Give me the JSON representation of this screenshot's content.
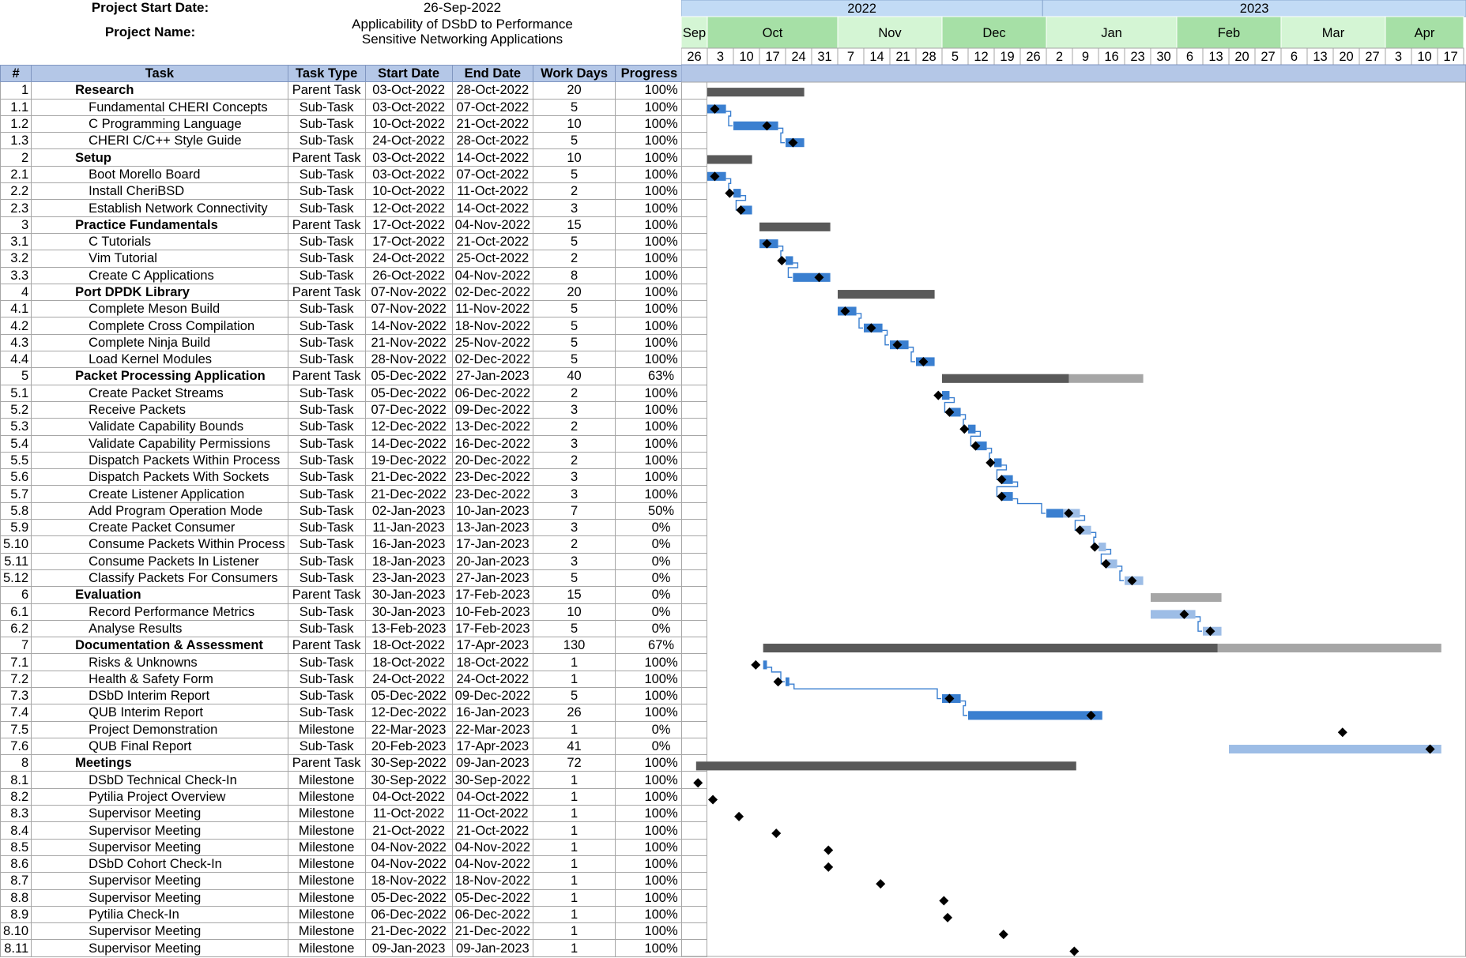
{
  "header": {
    "start_label": "Project Start Date:",
    "start_value": "26-Sep-2022",
    "name_label": "Project Name:",
    "name_value_line1": "Applicability of DSbD to Performance",
    "name_value_line2": "Sensitive Networking Applications"
  },
  "columns": [
    "#",
    "Task",
    "Task Type",
    "Start Date",
    "End Date",
    "Work Days",
    "Progress (%)"
  ],
  "colors": {
    "parent_done": "#595959",
    "parent_remaining": "#a6a6a6",
    "sub_done": "#3a7fd0",
    "sub_remaining": "#9dbde6",
    "year_fill": "#c2dbf5",
    "month_fill_a": "#a6e0a6",
    "month_fill_b": "#d4f5d4",
    "table_header": "#b4c7e7"
  },
  "chart_data": {
    "type": "gantt",
    "timeline": {
      "years": [
        {
          "label": "2022"
        },
        {
          "label": "2023"
        }
      ],
      "months": [
        "Sep",
        "Oct",
        "Nov",
        "Dec",
        "Jan",
        "Feb",
        "Mar",
        "Apr"
      ],
      "weeks": [
        "26",
        "3",
        "10",
        "17",
        "24",
        "31",
        "7",
        "14",
        "21",
        "28",
        "5",
        "12",
        "19",
        "26",
        "2",
        "9",
        "16",
        "23",
        "30",
        "6",
        "13",
        "20",
        "27",
        "6",
        "13",
        "20",
        "27",
        "3",
        "10",
        "17"
      ]
    },
    "tasks": [
      {
        "id": "1",
        "name": "Research",
        "type": "Parent Task",
        "start": "03-Oct-2022",
        "end": "28-Oct-2022",
        "days": "20",
        "progress": "100%"
      },
      {
        "id": "1.1",
        "name": "Fundamental CHERI Concepts",
        "type": "Sub-Task",
        "start": "03-Oct-2022",
        "end": "07-Oct-2022",
        "days": "5",
        "progress": "100%"
      },
      {
        "id": "1.2",
        "name": "C Programming Language",
        "type": "Sub-Task",
        "start": "10-Oct-2022",
        "end": "21-Oct-2022",
        "days": "10",
        "progress": "100%"
      },
      {
        "id": "1.3",
        "name": "CHERI C/C++ Style Guide",
        "type": "Sub-Task",
        "start": "24-Oct-2022",
        "end": "28-Oct-2022",
        "days": "5",
        "progress": "100%"
      },
      {
        "id": "2",
        "name": "Setup",
        "type": "Parent Task",
        "start": "03-Oct-2022",
        "end": "14-Oct-2022",
        "days": "10",
        "progress": "100%"
      },
      {
        "id": "2.1",
        "name": "Boot Morello Board",
        "type": "Sub-Task",
        "start": "03-Oct-2022",
        "end": "07-Oct-2022",
        "days": "5",
        "progress": "100%"
      },
      {
        "id": "2.2",
        "name": "Install CheriBSD",
        "type": "Sub-Task",
        "start": "10-Oct-2022",
        "end": "11-Oct-2022",
        "days": "2",
        "progress": "100%"
      },
      {
        "id": "2.3",
        "name": "Establish Network Connectivity",
        "type": "Sub-Task",
        "start": "12-Oct-2022",
        "end": "14-Oct-2022",
        "days": "3",
        "progress": "100%"
      },
      {
        "id": "3",
        "name": "Practice Fundamentals",
        "type": "Parent Task",
        "start": "17-Oct-2022",
        "end": "04-Nov-2022",
        "days": "15",
        "progress": "100%"
      },
      {
        "id": "3.1",
        "name": "C Tutorials",
        "type": "Sub-Task",
        "start": "17-Oct-2022",
        "end": "21-Oct-2022",
        "days": "5",
        "progress": "100%"
      },
      {
        "id": "3.2",
        "name": "Vim Tutorial",
        "type": "Sub-Task",
        "start": "24-Oct-2022",
        "end": "25-Oct-2022",
        "days": "2",
        "progress": "100%"
      },
      {
        "id": "3.3",
        "name": "Create C Applications",
        "type": "Sub-Task",
        "start": "26-Oct-2022",
        "end": "04-Nov-2022",
        "days": "8",
        "progress": "100%"
      },
      {
        "id": "4",
        "name": "Port DPDK Library",
        "type": "Parent Task",
        "start": "07-Nov-2022",
        "end": "02-Dec-2022",
        "days": "20",
        "progress": "100%"
      },
      {
        "id": "4.1",
        "name": "Complete Meson Build",
        "type": "Sub-Task",
        "start": "07-Nov-2022",
        "end": "11-Nov-2022",
        "days": "5",
        "progress": "100%"
      },
      {
        "id": "4.2",
        "name": "Complete Cross Compilation",
        "type": "Sub-Task",
        "start": "14-Nov-2022",
        "end": "18-Nov-2022",
        "days": "5",
        "progress": "100%"
      },
      {
        "id": "4.3",
        "name": "Complete Ninja Build",
        "type": "Sub-Task",
        "start": "21-Nov-2022",
        "end": "25-Nov-2022",
        "days": "5",
        "progress": "100%"
      },
      {
        "id": "4.4",
        "name": "Load Kernel Modules",
        "type": "Sub-Task",
        "start": "28-Nov-2022",
        "end": "02-Dec-2022",
        "days": "5",
        "progress": "100%"
      },
      {
        "id": "5",
        "name": "Packet Processing Application",
        "type": "Parent Task",
        "start": "05-Dec-2022",
        "end": "27-Jan-2023",
        "days": "40",
        "progress": "63%"
      },
      {
        "id": "5.1",
        "name": "Create Packet Streams",
        "type": "Sub-Task",
        "start": "05-Dec-2022",
        "end": "06-Dec-2022",
        "days": "2",
        "progress": "100%"
      },
      {
        "id": "5.2",
        "name": "Receive Packets",
        "type": "Sub-Task",
        "start": "07-Dec-2022",
        "end": "09-Dec-2022",
        "days": "3",
        "progress": "100%"
      },
      {
        "id": "5.3",
        "name": "Validate Capability Bounds",
        "type": "Sub-Task",
        "start": "12-Dec-2022",
        "end": "13-Dec-2022",
        "days": "2",
        "progress": "100%"
      },
      {
        "id": "5.4",
        "name": "Validate Capability Permissions",
        "type": "Sub-Task",
        "start": "14-Dec-2022",
        "end": "16-Dec-2022",
        "days": "3",
        "progress": "100%"
      },
      {
        "id": "5.5",
        "name": "Dispatch Packets Within Process",
        "type": "Sub-Task",
        "start": "19-Dec-2022",
        "end": "20-Dec-2022",
        "days": "2",
        "progress": "100%"
      },
      {
        "id": "5.6",
        "name": "Dispatch Packets With Sockets",
        "type": "Sub-Task",
        "start": "21-Dec-2022",
        "end": "23-Dec-2022",
        "days": "3",
        "progress": "100%"
      },
      {
        "id": "5.7",
        "name": "Create Listener Application",
        "type": "Sub-Task",
        "start": "21-Dec-2022",
        "end": "23-Dec-2022",
        "days": "3",
        "progress": "100%"
      },
      {
        "id": "5.8",
        "name": "Add Program Operation Mode",
        "type": "Sub-Task",
        "start": "02-Jan-2023",
        "end": "10-Jan-2023",
        "days": "7",
        "progress": "50%"
      },
      {
        "id": "5.9",
        "name": "Create Packet Consumer",
        "type": "Sub-Task",
        "start": "11-Jan-2023",
        "end": "13-Jan-2023",
        "days": "3",
        "progress": "0%"
      },
      {
        "id": "5.10",
        "name": "Consume Packets Within Process",
        "type": "Sub-Task",
        "start": "16-Jan-2023",
        "end": "17-Jan-2023",
        "days": "2",
        "progress": "0%"
      },
      {
        "id": "5.11",
        "name": "Consume Packets In Listener",
        "type": "Sub-Task",
        "start": "18-Jan-2023",
        "end": "20-Jan-2023",
        "days": "3",
        "progress": "0%"
      },
      {
        "id": "5.12",
        "name": "Classify Packets For Consumers",
        "type": "Sub-Task",
        "start": "23-Jan-2023",
        "end": "27-Jan-2023",
        "days": "5",
        "progress": "0%"
      },
      {
        "id": "6",
        "name": "Evaluation",
        "type": "Parent Task",
        "start": "30-Jan-2023",
        "end": "17-Feb-2023",
        "days": "15",
        "progress": "0%"
      },
      {
        "id": "6.1",
        "name": "Record Performance Metrics",
        "type": "Sub-Task",
        "start": "30-Jan-2023",
        "end": "10-Feb-2023",
        "days": "10",
        "progress": "0%"
      },
      {
        "id": "6.2",
        "name": "Analyse Results",
        "type": "Sub-Task",
        "start": "13-Feb-2023",
        "end": "17-Feb-2023",
        "days": "5",
        "progress": "0%"
      },
      {
        "id": "7",
        "name": "Documentation & Assessment",
        "type": "Parent Task",
        "start": "18-Oct-2022",
        "end": "17-Apr-2023",
        "days": "130",
        "progress": "67%"
      },
      {
        "id": "7.1",
        "name": "Risks & Unknowns",
        "type": "Sub-Task",
        "start": "18-Oct-2022",
        "end": "18-Oct-2022",
        "days": "1",
        "progress": "100%"
      },
      {
        "id": "7.2",
        "name": "Health & Safety Form",
        "type": "Sub-Task",
        "start": "24-Oct-2022",
        "end": "24-Oct-2022",
        "days": "1",
        "progress": "100%"
      },
      {
        "id": "7.3",
        "name": "DSbD Interim Report",
        "type": "Sub-Task",
        "start": "05-Dec-2022",
        "end": "09-Dec-2022",
        "days": "5",
        "progress": "100%"
      },
      {
        "id": "7.4",
        "name": "QUB Interim Report",
        "type": "Sub-Task",
        "start": "12-Dec-2022",
        "end": "16-Jan-2023",
        "days": "26",
        "progress": "100%"
      },
      {
        "id": "7.5",
        "name": "Project Demonstration",
        "type": "Milestone",
        "start": "22-Mar-2023",
        "end": "22-Mar-2023",
        "days": "1",
        "progress": "0%"
      },
      {
        "id": "7.6",
        "name": "QUB Final Report",
        "type": "Sub-Task",
        "start": "20-Feb-2023",
        "end": "17-Apr-2023",
        "days": "41",
        "progress": "0%"
      },
      {
        "id": "8",
        "name": "Meetings",
        "type": "Parent Task",
        "start": "30-Sep-2022",
        "end": "09-Jan-2023",
        "days": "72",
        "progress": "100%"
      },
      {
        "id": "8.1",
        "name": "DSbD Technical Check-In",
        "type": "Milestone",
        "start": "30-Sep-2022",
        "end": "30-Sep-2022",
        "days": "1",
        "progress": "100%"
      },
      {
        "id": "8.2",
        "name": "Pytilia Project Overview",
        "type": "Milestone",
        "start": "04-Oct-2022",
        "end": "04-Oct-2022",
        "days": "1",
        "progress": "100%"
      },
      {
        "id": "8.3",
        "name": "Supervisor Meeting",
        "type": "Milestone",
        "start": "11-Oct-2022",
        "end": "11-Oct-2022",
        "days": "1",
        "progress": "100%"
      },
      {
        "id": "8.4",
        "name": "Supervisor Meeting",
        "type": "Milestone",
        "start": "21-Oct-2022",
        "end": "21-Oct-2022",
        "days": "1",
        "progress": "100%"
      },
      {
        "id": "8.5",
        "name": "Supervisor Meeting",
        "type": "Milestone",
        "start": "04-Nov-2022",
        "end": "04-Nov-2022",
        "days": "1",
        "progress": "100%"
      },
      {
        "id": "8.6",
        "name": "DSbD Cohort Check-In",
        "type": "Milestone",
        "start": "04-Nov-2022",
        "end": "04-Nov-2022",
        "days": "1",
        "progress": "100%"
      },
      {
        "id": "8.7",
        "name": "Supervisor Meeting",
        "type": "Milestone",
        "start": "18-Nov-2022",
        "end": "18-Nov-2022",
        "days": "1",
        "progress": "100%"
      },
      {
        "id": "8.8",
        "name": "Supervisor Meeting",
        "type": "Milestone",
        "start": "05-Dec-2022",
        "end": "05-Dec-2022",
        "days": "1",
        "progress": "100%"
      },
      {
        "id": "8.9",
        "name": "Pytilia Check-In",
        "type": "Milestone",
        "start": "06-Dec-2022",
        "end": "06-Dec-2022",
        "days": "1",
        "progress": "100%"
      },
      {
        "id": "8.10",
        "name": "Supervisor Meeting",
        "type": "Milestone",
        "start": "21-Dec-2022",
        "end": "21-Dec-2022",
        "days": "1",
        "progress": "100%"
      },
      {
        "id": "8.11",
        "name": "Supervisor Meeting",
        "type": "Milestone",
        "start": "09-Jan-2023",
        "end": "09-Jan-2023",
        "days": "1",
        "progress": "100%"
      }
    ]
  }
}
